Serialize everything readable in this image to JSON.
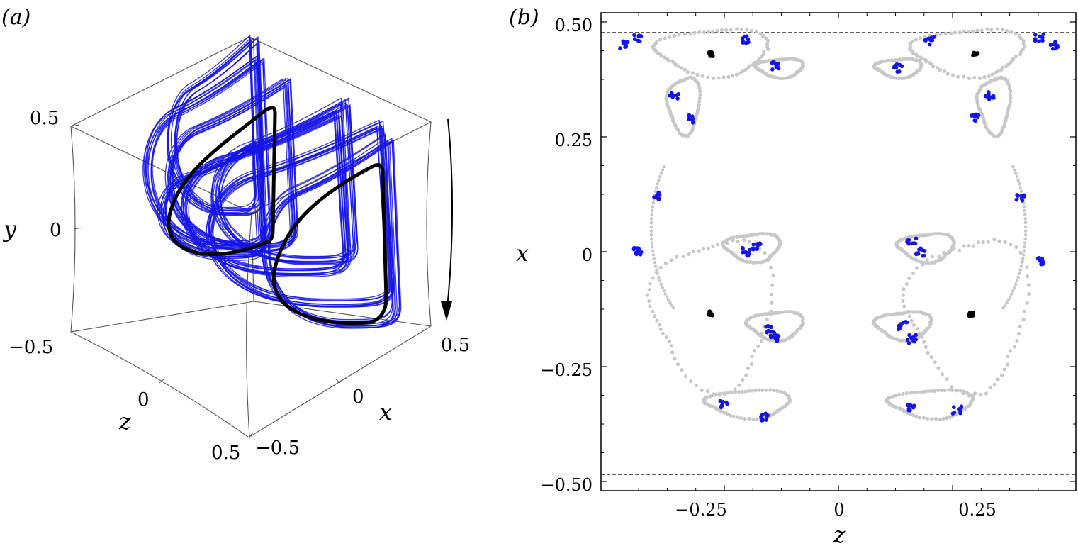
{
  "panel_a": {
    "label": "(a)",
    "axis_labels": {
      "x": "x",
      "y": "y",
      "z": "z"
    },
    "ticks": {
      "y": [
        "0.5",
        "0",
        "−0.5"
      ],
      "z": [
        "0",
        "0.5"
      ],
      "x": [
        "−0.5",
        "0",
        "0.5"
      ]
    }
  },
  "panel_b": {
    "label": "(b)",
    "xlabel": "z",
    "ylabel": "x",
    "xticks": [
      "−0.25",
      "0",
      "0.25"
    ],
    "yticks": [
      "0.50",
      "0.25",
      "0",
      "−0.25",
      "−0.50"
    ]
  },
  "colors": {
    "trajectory": "#1414e6",
    "periodic_orbit": "#000000",
    "section_gray": "#c8c8c8",
    "section_blue": "#1414e6"
  },
  "chart_data": [
    {
      "type": "line",
      "projection": "3d",
      "series": [
        {
          "color": "#1414e6",
          "role": "chaotic trajectory"
        },
        {
          "color": "#000000",
          "role": "periodic orbit"
        }
      ],
      "xlim": [
        -0.5,
        0.5
      ],
      "ylim": [
        -0.5,
        0.5
      ],
      "zlim": [
        -0.5,
        0.5
      ]
    },
    {
      "type": "scatter",
      "xlim": [
        -0.52,
        0.52
      ],
      "ylim": [
        -0.52,
        0.52
      ],
      "reference_lines_y": [
        0.48,
        -0.48
      ],
      "black_points": [
        {
          "z": -0.28,
          "x": 0.43
        },
        {
          "z": 0.3,
          "x": 0.43
        },
        {
          "z": -0.28,
          "x": -0.135
        },
        {
          "z": 0.29,
          "x": -0.135
        }
      ],
      "blue_clusters": [
        {
          "z": -0.47,
          "x": 0.45
        },
        {
          "z": -0.44,
          "x": 0.465
        },
        {
          "z": -0.2,
          "x": 0.46
        },
        {
          "z": -0.14,
          "x": 0.405
        },
        {
          "z": 0.2,
          "x": 0.46
        },
        {
          "z": 0.13,
          "x": 0.4
        },
        {
          "z": 0.44,
          "x": 0.465
        },
        {
          "z": 0.47,
          "x": 0.45
        },
        {
          "z": -0.36,
          "x": 0.34
        },
        {
          "z": -0.32,
          "x": 0.29
        },
        {
          "z": 0.33,
          "x": 0.34
        },
        {
          "z": 0.3,
          "x": 0.29
        },
        {
          "z": -0.4,
          "x": 0.12
        },
        {
          "z": 0.4,
          "x": 0.12
        },
        {
          "z": -0.44,
          "x": 0.0
        },
        {
          "z": 0.44,
          "x": -0.02
        },
        {
          "z": -0.18,
          "x": 0.01
        },
        {
          "z": -0.2,
          "x": 0.0
        },
        {
          "z": 0.16,
          "x": 0.02
        },
        {
          "z": 0.18,
          "x": 0.0
        },
        {
          "z": -0.15,
          "x": -0.17
        },
        {
          "z": -0.14,
          "x": -0.19
        },
        {
          "z": 0.14,
          "x": -0.16
        },
        {
          "z": 0.16,
          "x": -0.19
        },
        {
          "z": -0.25,
          "x": -0.33
        },
        {
          "z": -0.16,
          "x": -0.36
        },
        {
          "z": 0.16,
          "x": -0.34
        },
        {
          "z": 0.26,
          "x": -0.345
        }
      ],
      "gray_loops": [
        {
          "cz": -0.28,
          "cx": 0.435,
          "rz": 0.12,
          "rx": 0.05
        },
        {
          "cz": 0.28,
          "cx": 0.435,
          "rz": 0.12,
          "rx": 0.05
        },
        {
          "cz": -0.13,
          "cx": 0.4,
          "rz": 0.05,
          "rx": 0.02
        },
        {
          "cz": 0.13,
          "cx": 0.4,
          "rz": 0.05,
          "rx": 0.02
        },
        {
          "cz": -0.34,
          "cx": 0.32,
          "rz": 0.035,
          "rx": 0.06
        },
        {
          "cz": 0.34,
          "cx": 0.32,
          "rz": 0.035,
          "rx": 0.06
        },
        {
          "cz": -0.19,
          "cx": 0.01,
          "rz": 0.06,
          "rx": 0.03
        },
        {
          "cz": 0.19,
          "cx": 0.01,
          "rz": 0.06,
          "rx": 0.03
        },
        {
          "cz": -0.14,
          "cx": -0.16,
          "rz": 0.06,
          "rx": 0.03
        },
        {
          "cz": 0.14,
          "cx": -0.16,
          "rz": 0.06,
          "rx": 0.03
        },
        {
          "cz": -0.2,
          "cx": -0.33,
          "rz": 0.09,
          "rx": 0.03
        },
        {
          "cz": 0.2,
          "cx": -0.33,
          "rz": 0.09,
          "rx": 0.03
        },
        {
          "cz": -0.28,
          "cx": -0.13,
          "rz": 0.13,
          "rx": 0.16
        },
        {
          "cz": 0.28,
          "cx": -0.13,
          "rz": 0.13,
          "rx": 0.16
        }
      ]
    }
  ]
}
